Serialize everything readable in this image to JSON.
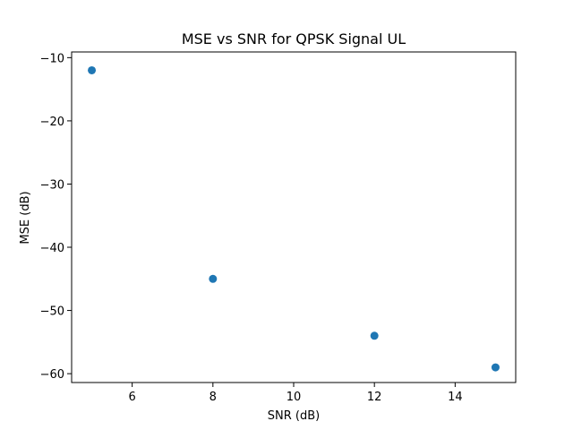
{
  "chart_data": {
    "type": "scatter",
    "title": "MSE vs SNR for QPSK Signal UL",
    "xlabel": "SNR (dB)",
    "ylabel": "MSE (dB)",
    "x": [
      5,
      8,
      12,
      15
    ],
    "y": [
      -12,
      -45,
      -54,
      -59
    ],
    "xlim": [
      4.5,
      15.5
    ],
    "ylim": [
      -61.4,
      -9.1
    ],
    "xticks": [
      6,
      8,
      10,
      12,
      14
    ],
    "yticks": [
      -10,
      -20,
      -30,
      -40,
      -50,
      -60
    ],
    "xtick_labels": [
      "6",
      "8",
      "10",
      "12",
      "14"
    ],
    "ytick_labels": [
      "−10",
      "−20",
      "−30",
      "−40",
      "−50",
      "−60"
    ],
    "grid": false,
    "marker_color": "#1f77b4"
  }
}
